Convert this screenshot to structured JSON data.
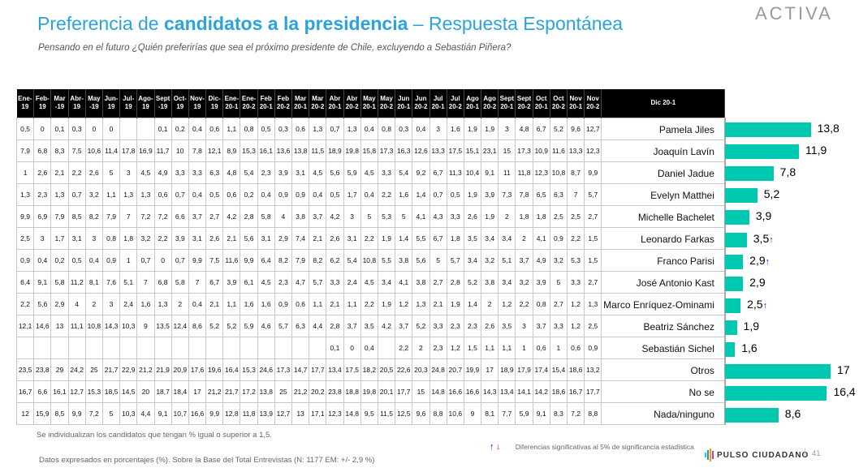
{
  "header": {
    "title_part1": "Preferencia de ",
    "title_bold": "candidatos a la presidencia",
    "title_part2": " – Respuesta Espontánea",
    "subtitle": "Pensando en el futuro ¿Quién preferirías que sea el próximo presidente de Chile, excluyendo a Sebastián Piñera?",
    "logo": "ACTIVA"
  },
  "table": {
    "columns": [
      "Ene-19",
      "Feb-19",
      "Mar -19",
      "Abr-19",
      "May -19",
      "Jun-19",
      "Jul-19",
      "Ago-19",
      "Sept -19",
      "Oct-19",
      "Nov-19",
      "Dic-19",
      "Ene-20-1",
      "Ene-20-2",
      "Feb 20-1",
      "Feb 20-2",
      "Mar 20-1",
      "Mar 20-2",
      "Abr 20-1",
      "Abr 20-2",
      "May 20-1",
      "May 20-2",
      "Jun 20-1",
      "Jun 20-2",
      "Jul 20-1",
      "Jul 20-2",
      "Ago 20-1",
      "Ago 20-2",
      "Sept 20-1",
      "Sept 20-2",
      "Oct 20-1",
      "Oct 20-2",
      "Nov 20-1",
      "Nov 20-2"
    ],
    "current_column": "Dic 20-1",
    "rows": [
      {
        "name": "Pamela Jiles",
        "current": 13.8,
        "current_label": "13,8",
        "arrow": "",
        "values": [
          "0,5",
          "0",
          "0,1",
          "0,3",
          "0",
          "0",
          "",
          "",
          "0,1",
          "0,2",
          "0,4",
          "0,6",
          "1,1",
          "0,8",
          "0,5",
          "0,3",
          "0,6",
          "1,3",
          "0,7",
          "1,3",
          "0,4",
          "0,8",
          "0,3",
          "0,4",
          "3",
          "1,6",
          "1,9",
          "1,9",
          "3",
          "4,8",
          "6,7",
          "5,2",
          "9,6",
          "12,7"
        ]
      },
      {
        "name": "Joaquín Lavín",
        "current": 11.9,
        "current_label": "11,9",
        "arrow": "",
        "values": [
          "7,9",
          "6,8",
          "8,3",
          "7,5",
          "10,6",
          "11,4",
          "17,8",
          "16,9",
          "11,7",
          "10",
          "7,8",
          "12,1",
          "8,9",
          "15,3",
          "16,1",
          "13,6",
          "13,8",
          "11,5",
          "18,9",
          "19,8",
          "15,8",
          "17,3",
          "16,3",
          "12,6",
          "13,3",
          "17,5",
          "15,1",
          "23,1",
          "15",
          "17,3",
          "10,9",
          "11,6",
          "13,3",
          "12,3"
        ]
      },
      {
        "name": "Daniel Jadue",
        "current": 7.8,
        "current_label": "7,8",
        "arrow": "",
        "values": [
          "1",
          "2,6",
          "2,1",
          "2,2",
          "2,6",
          "5",
          "3",
          "4,5",
          "4,9",
          "3,3",
          "3,3",
          "6,3",
          "4,8",
          "5,4",
          "2,3",
          "3,9",
          "3,1",
          "4,5",
          "5,6",
          "5,9",
          "4,5",
          "3,3",
          "5,4",
          "9,2",
          "6,7",
          "11,3",
          "10,4",
          "9,1",
          "11",
          "11,8",
          "12,3",
          "10,8",
          "8,7",
          "9,9"
        ]
      },
      {
        "name": "Evelyn Matthei",
        "current": 5.2,
        "current_label": "5,2",
        "arrow": "",
        "values": [
          "1,3",
          "2,3",
          "1,3",
          "0,7",
          "3,2",
          "1,1",
          "1,3",
          "1,3",
          "0,6",
          "0,7",
          "0,4",
          "0,5",
          "0,6",
          "0,2",
          "0,4",
          "0,9",
          "0,9",
          "0,4",
          "0,5",
          "1,7",
          "0,4",
          "2,2",
          "1,6",
          "1,4",
          "0,7",
          "0,5",
          "1,9",
          "3,9",
          "7,3",
          "7,8",
          "6,5",
          "6,3",
          "7",
          "5,7"
        ]
      },
      {
        "name": "Michelle Bachelet",
        "current": 3.9,
        "current_label": "3,9",
        "arrow": "",
        "values": [
          "9,9",
          "6,9",
          "7,9",
          "8,5",
          "8,2",
          "7,9",
          "7",
          "7,2",
          "7,2",
          "6,6",
          "3,7",
          "2,7",
          "4,2",
          "2,8",
          "5,8",
          "4",
          "3,8",
          "3,7",
          "4,2",
          "3",
          "5",
          "5,3",
          "5",
          "4,1",
          "4,3",
          "3,3",
          "2,6",
          "1,9",
          "2",
          "1,8",
          "1,8",
          "2,5",
          "2,5",
          "2,7"
        ]
      },
      {
        "name": "Leonardo Farkas",
        "current": 3.5,
        "current_label": "3,5",
        "arrow": "↑",
        "values": [
          "2,5",
          "3",
          "1,7",
          "3,1",
          "3",
          "0,8",
          "1,8",
          "3,2",
          "2,2",
          "3,9",
          "3,1",
          "2,6",
          "2,1",
          "5,6",
          "3,1",
          "2,9",
          "7,4",
          "2,1",
          "2,6",
          "3,1",
          "2,2",
          "1,9",
          "1,4",
          "5,5",
          "6,7",
          "1,8",
          "3,5",
          "3,4",
          "3,4",
          "2",
          "4,1",
          "0,9",
          "2,2",
          "1,5"
        ]
      },
      {
        "name": "Franco Parisi",
        "current": 2.9,
        "current_label": "2,9",
        "arrow": "↑",
        "values": [
          "0,9",
          "0,4",
          "0,2",
          "0,5",
          "0,4",
          "0,9",
          "1",
          "0,7",
          "0",
          "0,7",
          "9,9",
          "7,5",
          "11,6",
          "9,9",
          "6,4",
          "8,2",
          "7,9",
          "8,2",
          "6,2",
          "5,4",
          "10,8",
          "5,5",
          "3,8",
          "5,6",
          "5",
          "5,7",
          "3,4",
          "3,2",
          "5,1",
          "3,7",
          "4,9",
          "3,2",
          "5,3",
          "1,5"
        ]
      },
      {
        "name": "José Antonio Kast",
        "current": 2.9,
        "current_label": "2,9",
        "arrow": "",
        "values": [
          "6,4",
          "9,1",
          "5,8",
          "11,2",
          "8,1",
          "7,6",
          "5,1",
          "7",
          "6,8",
          "5,8",
          "7",
          "6,7",
          "3,9",
          "6,1",
          "4,5",
          "2,3",
          "4,7",
          "5,7",
          "3,3",
          "2,4",
          "4,5",
          "3,4",
          "4,1",
          "3,8",
          "2,7",
          "2,8",
          "5,2",
          "3,8",
          "3,4",
          "3,2",
          "3,9",
          "5",
          "3,3",
          "2,7"
        ]
      },
      {
        "name": "Marco Enríquez-Ominami",
        "current": 2.5,
        "current_label": "2,5",
        "arrow": "↑",
        "values": [
          "2,2",
          "5,6",
          "2,9",
          "4",
          "2",
          "3",
          "2,4",
          "1,6",
          "1,3",
          "2",
          "0,4",
          "2,1",
          "1,1",
          "1,6",
          "1,6",
          "0,9",
          "0,6",
          "1,1",
          "2,1",
          "1,1",
          "2,2",
          "1,9",
          "1,2",
          "1,3",
          "2,1",
          "1,9",
          "1,4",
          "2",
          "1,2",
          "2,2",
          "0,8",
          "2,7",
          "1,2",
          "1,3"
        ]
      },
      {
        "name": "Beatriz Sánchez",
        "current": 1.9,
        "current_label": "1,9",
        "arrow": "",
        "values": [
          "12,1",
          "14,6",
          "13",
          "11,1",
          "10,8",
          "14,3",
          "10,3",
          "9",
          "13,5",
          "12,4",
          "8,6",
          "5,2",
          "5,2",
          "5,9",
          "4,6",
          "5,7",
          "6,3",
          "4,4",
          "2,8",
          "3,7",
          "3,5",
          "4,2",
          "3,7",
          "5,2",
          "3,3",
          "2,3",
          "2,3",
          "2,6",
          "3,5",
          "3",
          "3,7",
          "3,3",
          "1,2",
          "2,5"
        ]
      },
      {
        "name": "Sebastián Sichel",
        "current": 1.6,
        "current_label": "1,6",
        "arrow": "",
        "values": [
          "",
          "",
          "",
          "",
          "",
          "",
          "",
          "",
          "",
          "",
          "",
          "",
          "",
          "",
          "",
          "",
          "",
          "",
          "0,1",
          "0",
          "0,4",
          "",
          "2,2",
          "2",
          "2,3",
          "1,2",
          "1,5",
          "1,1",
          "1,1",
          "1",
          "0,6",
          "1",
          "0,6",
          "0,9"
        ]
      },
      {
        "name": "Otros",
        "current": 17,
        "current_label": "17",
        "arrow": "",
        "values": [
          "23,5",
          "23,8",
          "29",
          "24,2",
          "25",
          "21,7",
          "22,9",
          "21,2",
          "21,9",
          "20,9",
          "17,6",
          "19,6",
          "16,4",
          "15,3",
          "24,6",
          "17,3",
          "14,7",
          "17,7",
          "13,4",
          "17,5",
          "18,2",
          "20,5",
          "22,6",
          "20,3",
          "24,8",
          "20,7",
          "19,9",
          "17",
          "18,9",
          "17,9",
          "17,4",
          "15,4",
          "18,6",
          "13,2"
        ]
      },
      {
        "name": "No se",
        "current": 16.4,
        "current_label": "16,4",
        "arrow": "",
        "values": [
          "16,7",
          "6,6",
          "16,1",
          "12,7",
          "15,3",
          "18,5",
          "14,5",
          "20",
          "18,7",
          "18,4",
          "17",
          "21,2",
          "21,7",
          "17,2",
          "13,8",
          "25",
          "21,2",
          "20,2",
          "23,8",
          "18,8",
          "19,8",
          "20,1",
          "17,7",
          "15",
          "14,8",
          "16,6",
          "16,6",
          "14,3",
          "13,4",
          "14,1",
          "14,2",
          "18,6",
          "16,7",
          "17,7"
        ]
      },
      {
        "name": "Nada/ninguno",
        "current": 8.6,
        "current_label": "8,6",
        "arrow": "",
        "values": [
          "12",
          "15,9",
          "8,5",
          "9,9",
          "7,2",
          "5",
          "10,3",
          "4,4",
          "9,1",
          "10,7",
          "16,6",
          "9,9",
          "12,8",
          "11,8",
          "13,9",
          "12,7",
          "13",
          "17,1",
          "12,3",
          "14,8",
          "9,5",
          "11,5",
          "12,5",
          "9,6",
          "8,8",
          "10,6",
          "9",
          "8,1",
          "7,7",
          "5,9",
          "9,1",
          "8,3",
          "7,2",
          "8,8"
        ]
      }
    ]
  },
  "footer": {
    "note_threshold": "Se individualizan los candidatos que tengan % igual o superior a 1,5.",
    "note_base": "Datos expresados en porcentajes (%). Sobre la Base del Total Entrevistas (N: 1177  EM: +/- 2,9 %)",
    "legend_up": "↑",
    "legend_down": "↓",
    "legend_text": "Diferencias  significativas  al 5% de significancia estadística",
    "brand": "PULSO CIUDADANO",
    "separator": "|",
    "page_number": "41"
  },
  "colors": {
    "title": "#2ba4dc",
    "bar": "#00c9b1",
    "up": "#1010ff",
    "down": "#ff2020"
  }
}
